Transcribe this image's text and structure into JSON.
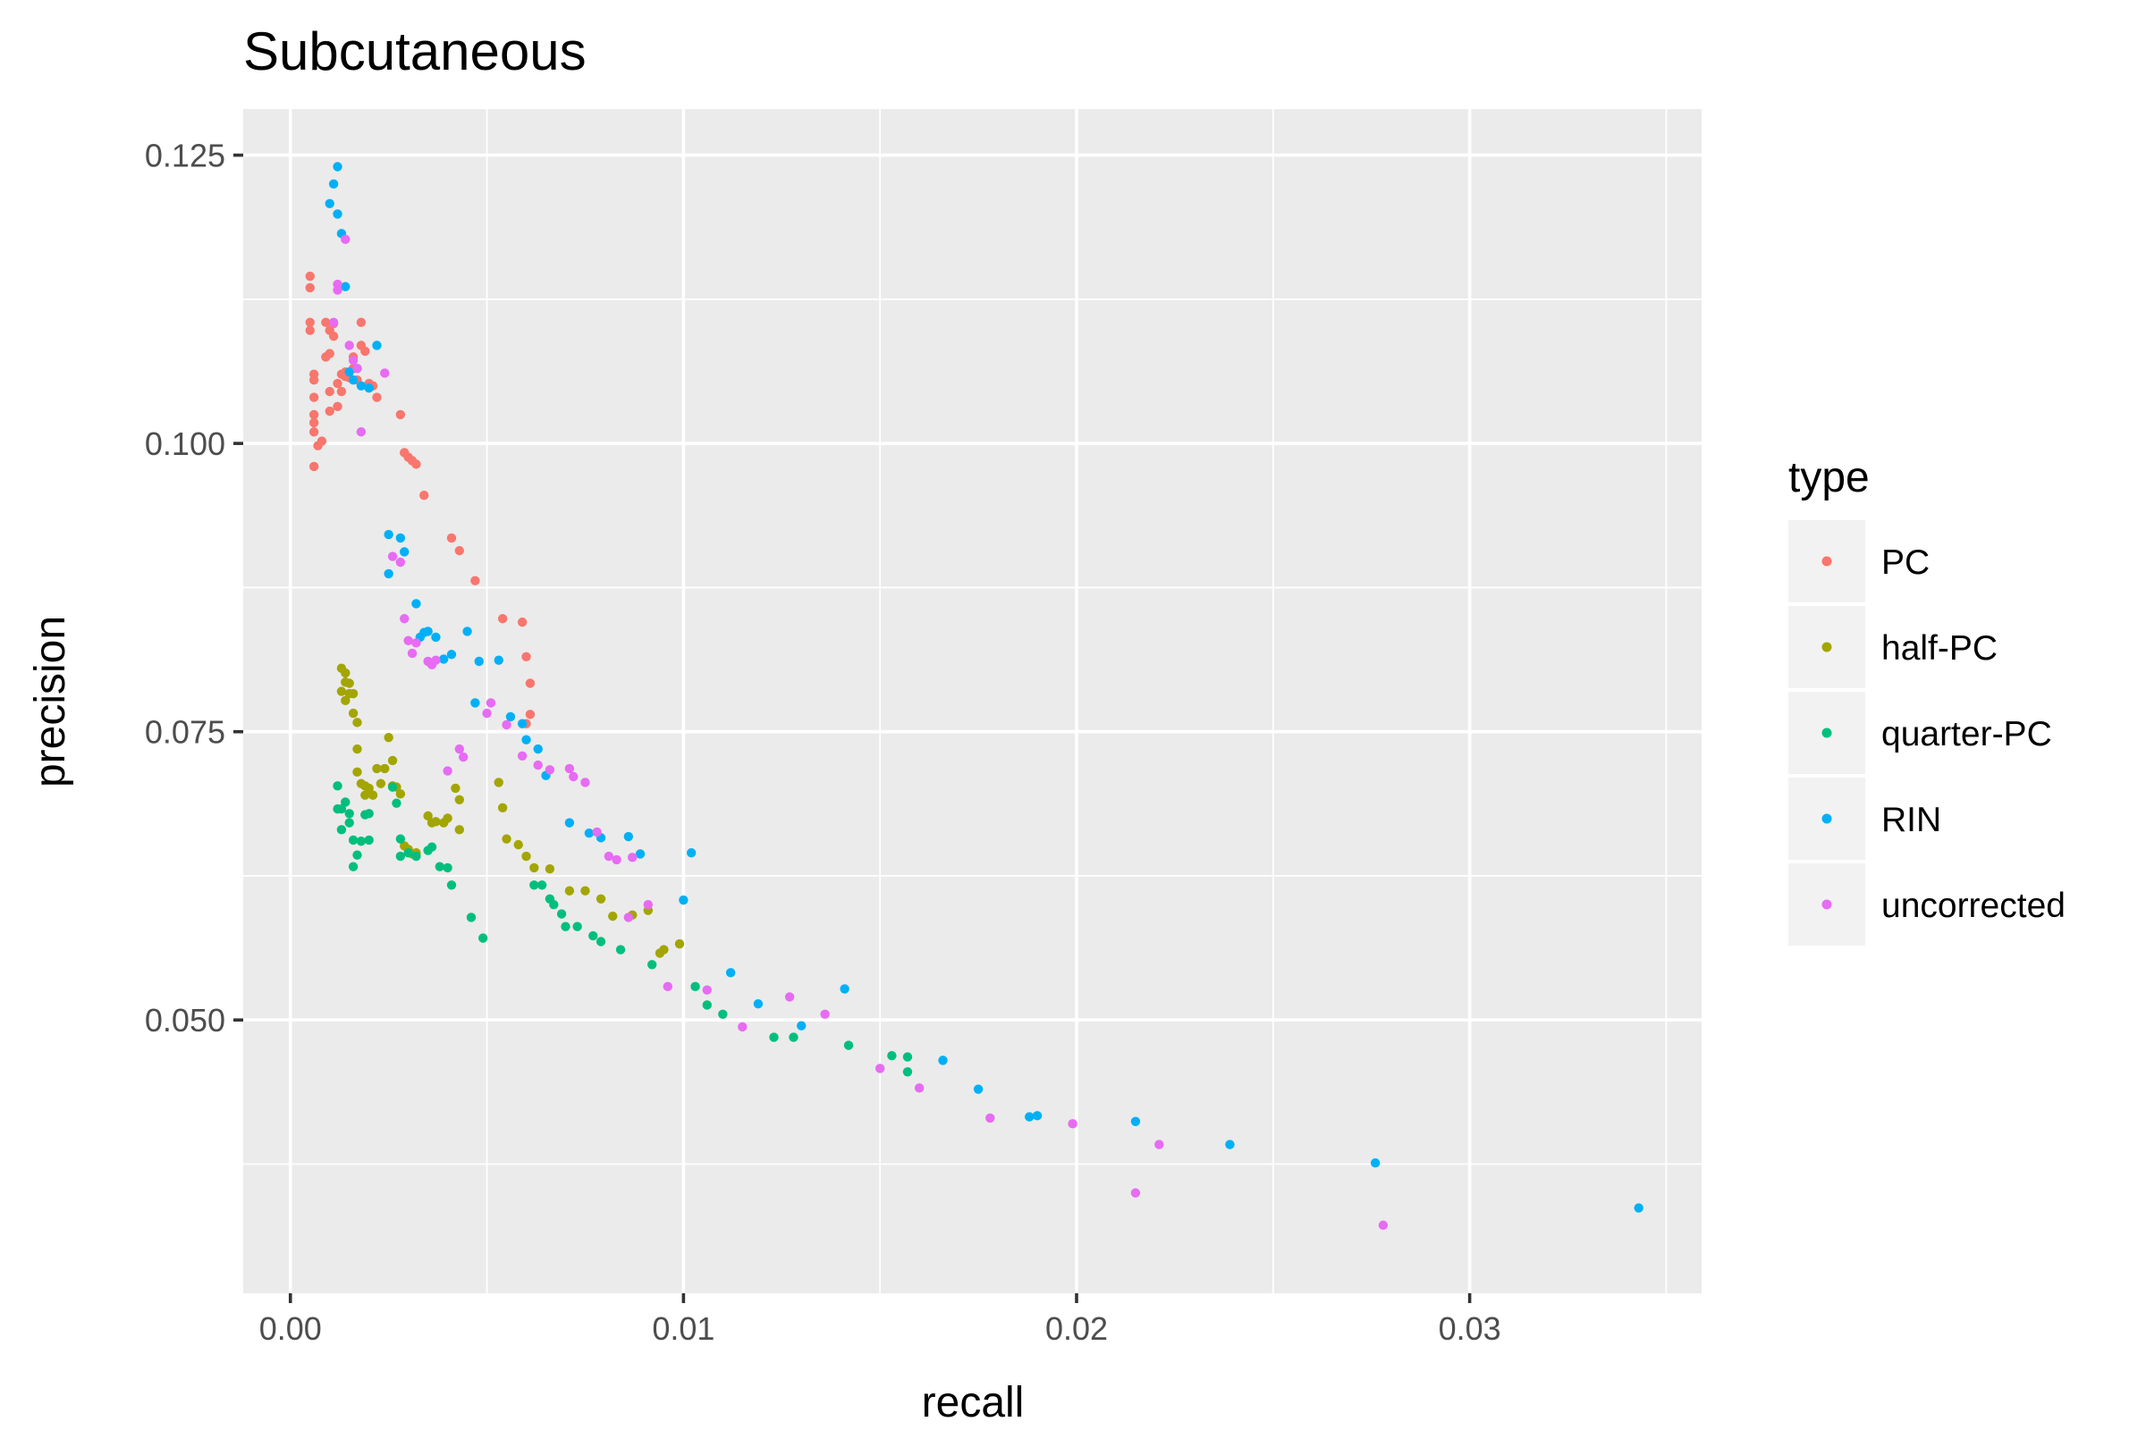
{
  "chart_data": {
    "type": "scatter",
    "title": "Subcutaneous",
    "xlabel": "recall",
    "ylabel": "precision",
    "xlim": [
      -0.0012,
      0.0359
    ],
    "ylim": [
      0.0263,
      0.129
    ],
    "x_ticks": [
      0.0,
      0.01,
      0.02,
      0.03
    ],
    "x_tick_labels": [
      "0.00",
      "0.01",
      "0.02",
      "0.03"
    ],
    "y_ticks": [
      0.05,
      0.075,
      0.1,
      0.125
    ],
    "y_tick_labels": [
      "0.050",
      "0.075",
      "0.100",
      "0.125"
    ],
    "grid": true,
    "legend_title": "type",
    "legend_position": "right",
    "series": [
      {
        "name": "PC",
        "color": "#F8766D",
        "points": [
          [
            0.0005,
            0.1145
          ],
          [
            0.0005,
            0.1135
          ],
          [
            0.0005,
            0.1105
          ],
          [
            0.0005,
            0.1098
          ],
          [
            0.0006,
            0.106
          ],
          [
            0.0006,
            0.1055
          ],
          [
            0.0006,
            0.104
          ],
          [
            0.0006,
            0.1025
          ],
          [
            0.0006,
            0.1018
          ],
          [
            0.0006,
            0.101
          ],
          [
            0.0006,
            0.098
          ],
          [
            0.0007,
            0.0998
          ],
          [
            0.0008,
            0.1002
          ],
          [
            0.0009,
            0.1075
          ],
          [
            0.0009,
            0.1105
          ],
          [
            0.001,
            0.1098
          ],
          [
            0.001,
            0.1078
          ],
          [
            0.001,
            0.1045
          ],
          [
            0.001,
            0.1028
          ],
          [
            0.0011,
            0.1104
          ],
          [
            0.0011,
            0.1093
          ],
          [
            0.0012,
            0.1032
          ],
          [
            0.0012,
            0.1052
          ],
          [
            0.0013,
            0.1045
          ],
          [
            0.0013,
            0.106
          ],
          [
            0.0014,
            0.1058
          ],
          [
            0.0014,
            0.1062
          ],
          [
            0.0015,
            0.1057
          ],
          [
            0.0016,
            0.1065
          ],
          [
            0.0016,
            0.1075
          ],
          [
            0.0017,
            0.1055
          ],
          [
            0.0018,
            0.1105
          ],
          [
            0.0018,
            0.1085
          ],
          [
            0.0019,
            0.108
          ],
          [
            0.002,
            0.1052
          ],
          [
            0.0021,
            0.105
          ],
          [
            0.0022,
            0.104
          ],
          [
            0.0028,
            0.1025
          ],
          [
            0.0029,
            0.0992
          ],
          [
            0.003,
            0.0988
          ],
          [
            0.0031,
            0.0985
          ],
          [
            0.0032,
            0.0982
          ],
          [
            0.0034,
            0.0955
          ],
          [
            0.0041,
            0.0918
          ],
          [
            0.0043,
            0.0907
          ],
          [
            0.0047,
            0.0881
          ],
          [
            0.0054,
            0.0848
          ],
          [
            0.0059,
            0.0845
          ],
          [
            0.006,
            0.0815
          ],
          [
            0.0061,
            0.0792
          ],
          [
            0.0061,
            0.0765
          ],
          [
            0.006,
            0.0757
          ]
        ]
      },
      {
        "name": "half-PC",
        "color": "#A3A500",
        "points": [
          [
            0.0013,
            0.0805
          ],
          [
            0.0014,
            0.0801
          ],
          [
            0.0014,
            0.0793
          ],
          [
            0.0015,
            0.0792
          ],
          [
            0.0013,
            0.0785
          ],
          [
            0.0015,
            0.0783
          ],
          [
            0.0016,
            0.0783
          ],
          [
            0.0014,
            0.0777
          ],
          [
            0.0016,
            0.0766
          ],
          [
            0.0017,
            0.0758
          ],
          [
            0.0017,
            0.0735
          ],
          [
            0.0017,
            0.0715
          ],
          [
            0.0018,
            0.0705
          ],
          [
            0.0019,
            0.0703
          ],
          [
            0.0019,
            0.0695
          ],
          [
            0.002,
            0.0701
          ],
          [
            0.0021,
            0.0695
          ],
          [
            0.0022,
            0.0718
          ],
          [
            0.0023,
            0.0705
          ],
          [
            0.0024,
            0.0718
          ],
          [
            0.0025,
            0.0745
          ],
          [
            0.0026,
            0.0725
          ],
          [
            0.0026,
            0.0703
          ],
          [
            0.0027,
            0.0702
          ],
          [
            0.0028,
            0.0696
          ],
          [
            0.0029,
            0.0651
          ],
          [
            0.003,
            0.0648
          ],
          [
            0.0031,
            0.0644
          ],
          [
            0.0032,
            0.0645
          ],
          [
            0.0035,
            0.0677
          ],
          [
            0.0036,
            0.0671
          ],
          [
            0.0037,
            0.0672
          ],
          [
            0.0039,
            0.0671
          ],
          [
            0.004,
            0.0675
          ],
          [
            0.0042,
            0.0701
          ],
          [
            0.0043,
            0.0691
          ],
          [
            0.0043,
            0.0665
          ],
          [
            0.0053,
            0.0706
          ],
          [
            0.0054,
            0.0684
          ],
          [
            0.0055,
            0.0657
          ],
          [
            0.0058,
            0.0652
          ],
          [
            0.006,
            0.0642
          ],
          [
            0.0062,
            0.0632
          ],
          [
            0.0066,
            0.0631
          ],
          [
            0.0071,
            0.0612
          ],
          [
            0.0075,
            0.0612
          ],
          [
            0.0079,
            0.0605
          ],
          [
            0.0082,
            0.059
          ],
          [
            0.0087,
            0.0591
          ],
          [
            0.0091,
            0.0595
          ],
          [
            0.0094,
            0.0558
          ],
          [
            0.0095,
            0.0561
          ],
          [
            0.0099,
            0.0566
          ]
        ]
      },
      {
        "name": "quarter-PC",
        "color": "#00BF7D",
        "points": [
          [
            0.0012,
            0.0703
          ],
          [
            0.0012,
            0.0683
          ],
          [
            0.0013,
            0.0683
          ],
          [
            0.0013,
            0.0665
          ],
          [
            0.0014,
            0.0689
          ],
          [
            0.0015,
            0.0679
          ],
          [
            0.0015,
            0.0671
          ],
          [
            0.0016,
            0.0656
          ],
          [
            0.0017,
            0.0643
          ],
          [
            0.0016,
            0.0633
          ],
          [
            0.0018,
            0.0655
          ],
          [
            0.0019,
            0.0678
          ],
          [
            0.002,
            0.0679
          ],
          [
            0.002,
            0.0656
          ],
          [
            0.0026,
            0.0702
          ],
          [
            0.0027,
            0.0688
          ],
          [
            0.0028,
            0.0657
          ],
          [
            0.0028,
            0.0642
          ],
          [
            0.003,
            0.0645
          ],
          [
            0.0032,
            0.0642
          ],
          [
            0.0035,
            0.0647
          ],
          [
            0.0036,
            0.065
          ],
          [
            0.0038,
            0.0633
          ],
          [
            0.004,
            0.0632
          ],
          [
            0.0041,
            0.0617
          ],
          [
            0.0046,
            0.0589
          ],
          [
            0.0049,
            0.0571
          ],
          [
            0.0062,
            0.0617
          ],
          [
            0.0064,
            0.0617
          ],
          [
            0.0066,
            0.0605
          ],
          [
            0.0067,
            0.06
          ],
          [
            0.0069,
            0.0592
          ],
          [
            0.007,
            0.0581
          ],
          [
            0.0073,
            0.0581
          ],
          [
            0.0077,
            0.0573
          ],
          [
            0.0079,
            0.0568
          ],
          [
            0.0084,
            0.0561
          ],
          [
            0.0092,
            0.0548
          ],
          [
            0.0103,
            0.0529
          ],
          [
            0.0106,
            0.0513
          ],
          [
            0.011,
            0.0505
          ],
          [
            0.0123,
            0.0485
          ],
          [
            0.0128,
            0.0485
          ],
          [
            0.0142,
            0.0478
          ],
          [
            0.0153,
            0.0469
          ],
          [
            0.0157,
            0.0468
          ],
          [
            0.0157,
            0.0455
          ]
        ]
      },
      {
        "name": "RIN",
        "color": "#00B0F6",
        "points": [
          [
            0.0012,
            0.124
          ],
          [
            0.0011,
            0.1225
          ],
          [
            0.001,
            0.1208
          ],
          [
            0.0012,
            0.1199
          ],
          [
            0.0013,
            0.1182
          ],
          [
            0.0014,
            0.1136
          ],
          [
            0.0015,
            0.1062
          ],
          [
            0.0016,
            0.1055
          ],
          [
            0.0017,
            0.1065
          ],
          [
            0.0018,
            0.105
          ],
          [
            0.002,
            0.1048
          ],
          [
            0.0022,
            0.1085
          ],
          [
            0.0025,
            0.0921
          ],
          [
            0.0028,
            0.0918
          ],
          [
            0.0029,
            0.0906
          ],
          [
            0.0025,
            0.0887
          ],
          [
            0.0032,
            0.0861
          ],
          [
            0.0033,
            0.0832
          ],
          [
            0.0034,
            0.0836
          ],
          [
            0.0035,
            0.0837
          ],
          [
            0.0037,
            0.0832
          ],
          [
            0.0039,
            0.0813
          ],
          [
            0.0041,
            0.0817
          ],
          [
            0.0045,
            0.0837
          ],
          [
            0.0048,
            0.0811
          ],
          [
            0.0047,
            0.0775
          ],
          [
            0.0053,
            0.0812
          ],
          [
            0.0056,
            0.0763
          ],
          [
            0.0059,
            0.0757
          ],
          [
            0.006,
            0.0743
          ],
          [
            0.0063,
            0.0735
          ],
          [
            0.0065,
            0.0712
          ],
          [
            0.0071,
            0.0671
          ],
          [
            0.0076,
            0.0662
          ],
          [
            0.0079,
            0.0658
          ],
          [
            0.0086,
            0.0659
          ],
          [
            0.0089,
            0.0644
          ],
          [
            0.01,
            0.0604
          ],
          [
            0.0102,
            0.0645
          ],
          [
            0.0112,
            0.0541
          ],
          [
            0.0119,
            0.0514
          ],
          [
            0.013,
            0.0495
          ],
          [
            0.0141,
            0.0527
          ],
          [
            0.0166,
            0.0465
          ],
          [
            0.0175,
            0.044
          ],
          [
            0.0188,
            0.0416
          ],
          [
            0.019,
            0.0417
          ],
          [
            0.0215,
            0.0412
          ],
          [
            0.0239,
            0.0392
          ],
          [
            0.0276,
            0.0376
          ],
          [
            0.0343,
            0.0337
          ]
        ]
      },
      {
        "name": "uncorrected",
        "color": "#E76BF3",
        "points": [
          [
            0.0014,
            0.1177
          ],
          [
            0.0012,
            0.1138
          ],
          [
            0.0012,
            0.1133
          ],
          [
            0.0011,
            0.1105
          ],
          [
            0.0015,
            0.1085
          ],
          [
            0.0016,
            0.1072
          ],
          [
            0.0017,
            0.1065
          ],
          [
            0.0018,
            0.101
          ],
          [
            0.0024,
            0.1061
          ],
          [
            0.0026,
            0.0902
          ],
          [
            0.0028,
            0.0897
          ],
          [
            0.0029,
            0.0848
          ],
          [
            0.003,
            0.0829
          ],
          [
            0.0031,
            0.0818
          ],
          [
            0.0032,
            0.0827
          ],
          [
            0.0035,
            0.0811
          ],
          [
            0.0036,
            0.0808
          ],
          [
            0.0037,
            0.0812
          ],
          [
            0.0043,
            0.0735
          ],
          [
            0.0044,
            0.0728
          ],
          [
            0.004,
            0.0716
          ],
          [
            0.005,
            0.0766
          ],
          [
            0.0051,
            0.0775
          ],
          [
            0.0055,
            0.0756
          ],
          [
            0.0059,
            0.0729
          ],
          [
            0.0063,
            0.0721
          ],
          [
            0.0066,
            0.0717
          ],
          [
            0.0071,
            0.0718
          ],
          [
            0.0072,
            0.0711
          ],
          [
            0.0075,
            0.0706
          ],
          [
            0.0078,
            0.0663
          ],
          [
            0.0081,
            0.0642
          ],
          [
            0.0083,
            0.0639
          ],
          [
            0.0086,
            0.0589
          ],
          [
            0.0087,
            0.0641
          ],
          [
            0.0091,
            0.06
          ],
          [
            0.0096,
            0.0529
          ],
          [
            0.0106,
            0.0526
          ],
          [
            0.0115,
            0.0494
          ],
          [
            0.0127,
            0.052
          ],
          [
            0.0136,
            0.0505
          ],
          [
            0.015,
            0.0458
          ],
          [
            0.016,
            0.0441
          ],
          [
            0.0178,
            0.0415
          ],
          [
            0.0199,
            0.041
          ],
          [
            0.0215,
            0.035
          ],
          [
            0.0221,
            0.0392
          ],
          [
            0.0278,
            0.0322
          ]
        ]
      }
    ]
  }
}
